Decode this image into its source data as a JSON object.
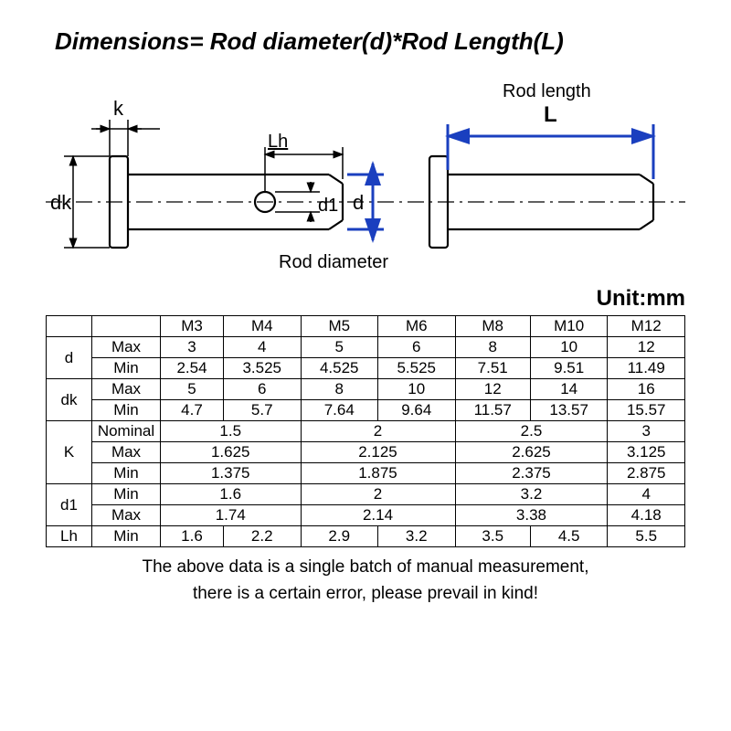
{
  "title": "Dimensions= Rod diameter(d)*Rod Length(L)",
  "unit_label": "Unit:mm",
  "diagram": {
    "labels": {
      "k": "k",
      "dk": "dk",
      "Lh": "Lh",
      "d1": "d1",
      "d": "d",
      "rod_length_top": "Rod length",
      "rod_length_L": "L",
      "rod_diameter": "Rod diameter"
    },
    "colors": {
      "outline": "#000000",
      "annotation": "#1a3fbf"
    },
    "stroke_width_outline": 2.2,
    "stroke_width_annotation": 3
  },
  "table": {
    "size_headers": [
      "M3",
      "M4",
      "M5",
      "M6",
      "M8",
      "M10",
      "M12"
    ],
    "rows": [
      {
        "label": "d",
        "sub": "Max",
        "cells": [
          {
            "v": "3",
            "span": 1
          },
          {
            "v": "4",
            "span": 1
          },
          {
            "v": "5",
            "span": 1
          },
          {
            "v": "6",
            "span": 1
          },
          {
            "v": "8",
            "span": 1
          },
          {
            "v": "10",
            "span": 1
          },
          {
            "v": "12",
            "span": 1
          }
        ]
      },
      {
        "label": "",
        "sub": "Min",
        "cells": [
          {
            "v": "2.54",
            "span": 1
          },
          {
            "v": "3.525",
            "span": 1
          },
          {
            "v": "4.525",
            "span": 1
          },
          {
            "v": "5.525",
            "span": 1
          },
          {
            "v": "7.51",
            "span": 1
          },
          {
            "v": "9.51",
            "span": 1
          },
          {
            "v": "11.49",
            "span": 1
          }
        ]
      },
      {
        "label": "dk",
        "sub": "Max",
        "cells": [
          {
            "v": "5",
            "span": 1
          },
          {
            "v": "6",
            "span": 1
          },
          {
            "v": "8",
            "span": 1
          },
          {
            "v": "10",
            "span": 1
          },
          {
            "v": "12",
            "span": 1
          },
          {
            "v": "14",
            "span": 1
          },
          {
            "v": "16",
            "span": 1
          }
        ]
      },
      {
        "label": "",
        "sub": "Min",
        "cells": [
          {
            "v": "4.7",
            "span": 1
          },
          {
            "v": "5.7",
            "span": 1
          },
          {
            "v": "7.64",
            "span": 1
          },
          {
            "v": "9.64",
            "span": 1
          },
          {
            "v": "11.57",
            "span": 1
          },
          {
            "v": "13.57",
            "span": 1
          },
          {
            "v": "15.57",
            "span": 1
          }
        ]
      },
      {
        "label": "K",
        "sub": "Nominal",
        "cells": [
          {
            "v": "1.5",
            "span": 2
          },
          {
            "v": "2",
            "span": 2
          },
          {
            "v": "2.5",
            "span": 2
          },
          {
            "v": "3",
            "span": 1
          }
        ]
      },
      {
        "label": "",
        "sub": "Max",
        "cells": [
          {
            "v": "1.625",
            "span": 2
          },
          {
            "v": "2.125",
            "span": 2
          },
          {
            "v": "2.625",
            "span": 2
          },
          {
            "v": "3.125",
            "span": 1
          }
        ]
      },
      {
        "label": "",
        "sub": "Min",
        "cells": [
          {
            "v": "1.375",
            "span": 2
          },
          {
            "v": "1.875",
            "span": 2
          },
          {
            "v": "2.375",
            "span": 2
          },
          {
            "v": "2.875",
            "span": 1
          }
        ]
      },
      {
        "label": "d1",
        "sub": "Min",
        "cells": [
          {
            "v": "1.6",
            "span": 2
          },
          {
            "v": "2",
            "span": 2
          },
          {
            "v": "3.2",
            "span": 2
          },
          {
            "v": "4",
            "span": 1
          }
        ]
      },
      {
        "label": "",
        "sub": "Max",
        "cells": [
          {
            "v": "1.74",
            "span": 2
          },
          {
            "v": "2.14",
            "span": 2
          },
          {
            "v": "3.38",
            "span": 2
          },
          {
            "v": "4.18",
            "span": 1
          }
        ]
      },
      {
        "label": "Lh",
        "sub": "Min",
        "cells": [
          {
            "v": "1.6",
            "span": 1
          },
          {
            "v": "2.2",
            "span": 1
          },
          {
            "v": "2.9",
            "span": 1
          },
          {
            "v": "3.2",
            "span": 1
          },
          {
            "v": "3.5",
            "span": 1
          },
          {
            "v": "4.5",
            "span": 1
          },
          {
            "v": "5.5",
            "span": 1
          }
        ]
      }
    ],
    "row_groups": [
      {
        "label": "d",
        "rows": 2
      },
      {
        "label": "dk",
        "rows": 2
      },
      {
        "label": "K",
        "rows": 3
      },
      {
        "label": "d1",
        "rows": 2
      },
      {
        "label": "Lh",
        "rows": 1
      }
    ]
  },
  "footnote_line1": "The above data is a single batch of manual measurement,",
  "footnote_line2": "there is a certain error, please prevail in kind!"
}
